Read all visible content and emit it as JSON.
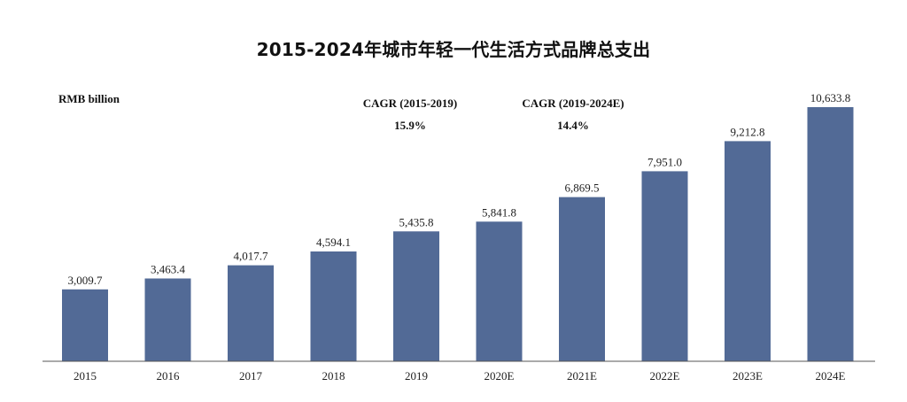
{
  "chart_data": {
    "type": "bar",
    "title": "2015-2024年城市年轻一代生活方式品牌总支出",
    "unit": "RMB billion",
    "categories": [
      "2015",
      "2016",
      "2017",
      "2018",
      "2019",
      "2020E",
      "2021E",
      "2022E",
      "2023E",
      "2024E"
    ],
    "values": [
      3009.7,
      3463.4,
      4017.7,
      4594.1,
      5435.8,
      5841.8,
      6869.5,
      7951.0,
      9212.8,
      10633.8
    ],
    "value_labels": [
      "3,009.7",
      "3,463.4",
      "4,017.7",
      "4,594.1",
      "5,435.8",
      "5,841.8",
      "6,869.5",
      "7,951.0",
      "9,212.8",
      "10,633.8"
    ],
    "annotations": [
      {
        "label": "CAGR (2015-2019)",
        "value": "15.9%"
      },
      {
        "label": "CAGR (2019-2024E)",
        "value": "14.4%"
      }
    ],
    "xlabel": "",
    "ylabel": "",
    "grid": false,
    "legend": "none",
    "bar_color": "#526a96"
  }
}
